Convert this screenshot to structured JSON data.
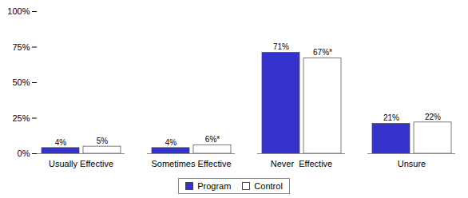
{
  "chart_data": {
    "type": "bar",
    "categories": [
      "Usually Effective",
      "Sometimes Effective",
      "Never  Effective",
      "Unsure"
    ],
    "series": [
      {
        "name": "Program",
        "color": "#3333CC",
        "values": [
          4,
          4,
          71,
          21
        ],
        "value_labels": [
          "4%",
          "4%",
          "71%",
          "21%"
        ]
      },
      {
        "name": "Control",
        "color": "#FFFFFF",
        "values": [
          5,
          6,
          67,
          22
        ],
        "value_labels": [
          "5%",
          "6%*",
          "67%*",
          "22%"
        ]
      }
    ],
    "ylim": [
      0,
      100
    ],
    "yticks": [
      {
        "value": 0,
        "label": "0%"
      },
      {
        "value": 25,
        "label": "25%"
      },
      {
        "value": 50,
        "label": "50%"
      },
      {
        "value": 75,
        "label": "75%"
      },
      {
        "value": 100,
        "label": "100%"
      }
    ],
    "grid": false,
    "legend": "bottom",
    "data_labels": true
  }
}
